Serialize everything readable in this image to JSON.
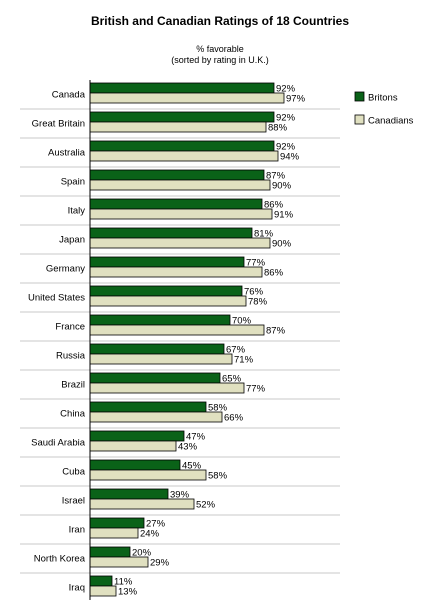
{
  "chart_data": {
    "type": "bar",
    "orientation": "horizontal",
    "title": "British and Canadian Ratings of 18 Countries",
    "subtitle_lines": [
      "% favorable",
      "(sorted by rating in U.K.)"
    ],
    "value_suffix": "%",
    "xlim": [
      0,
      100
    ],
    "grid": false,
    "legend_position": "right",
    "categories": [
      "Canada",
      "Great Britain",
      "Australia",
      "Spain",
      "Italy",
      "Japan",
      "Germany",
      "United States",
      "France",
      "Russia",
      "Brazil",
      "China",
      "Saudi Arabia",
      "Cuba",
      "Israel",
      "Iran",
      "North Korea",
      "Iraq"
    ],
    "series": [
      {
        "name": "Britons",
        "color": "#0a6218",
        "values": [
          92,
          92,
          92,
          87,
          86,
          81,
          77,
          76,
          70,
          67,
          65,
          58,
          47,
          45,
          39,
          27,
          20,
          11
        ]
      },
      {
        "name": "Canadians",
        "color": "#e0e0c0",
        "values": [
          97,
          88,
          94,
          90,
          91,
          90,
          86,
          78,
          87,
          71,
          77,
          66,
          43,
          58,
          52,
          24,
          29,
          13
        ]
      }
    ]
  }
}
